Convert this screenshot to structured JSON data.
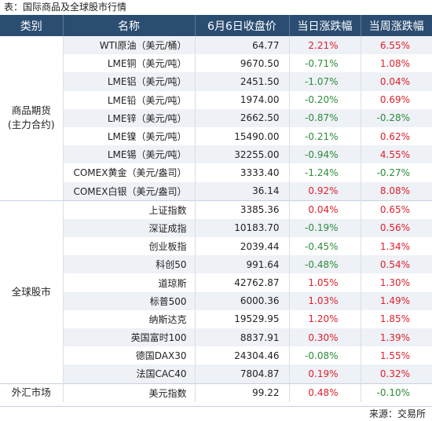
{
  "title": "表：国际商品及全球股市行情",
  "source": "来源：交易所",
  "headers": [
    "类别",
    "名称",
    "6月6日收盘价",
    "当日涨跌幅",
    "当周涨跌幅"
  ],
  "groups": [
    {
      "category": "商品期货\n(主力合约)",
      "rows": [
        {
          "name": "WTI原油（美元/桶）",
          "close": "64.77",
          "day": "2.21%",
          "week": "6.55%"
        },
        {
          "name": "LME铜（美元/吨）",
          "close": "9670.50",
          "day": "-0.71%",
          "week": "1.08%"
        },
        {
          "name": "LME铝（美元/吨）",
          "close": "2451.50",
          "day": "-1.07%",
          "week": "0.04%"
        },
        {
          "name": "LME铅（美元/吨）",
          "close": "1974.00",
          "day": "-0.20%",
          "week": "0.69%"
        },
        {
          "name": "LME锌（美元/吨）",
          "close": "2662.50",
          "day": "-0.87%",
          "week": "-0.28%"
        },
        {
          "name": "LME镍（美元/吨）",
          "close": "15490.00",
          "day": "-0.21%",
          "week": "0.62%"
        },
        {
          "name": "LME锡（美元/吨）",
          "close": "32255.00",
          "day": "-0.94%",
          "week": "4.55%"
        },
        {
          "name": "COMEX黄金（美元/盎司）",
          "close": "3333.40",
          "day": "-1.24%",
          "week": "-0.27%"
        },
        {
          "name": "COMEX白银（美元/盎司）",
          "close": "36.14",
          "day": "0.92%",
          "week": "8.08%"
        }
      ]
    },
    {
      "category": "全球股市",
      "rows": [
        {
          "name": "上证指数",
          "close": "3385.36",
          "day": "0.04%",
          "week": "0.65%"
        },
        {
          "name": "深证成指",
          "close": "10183.70",
          "day": "-0.19%",
          "week": "0.56%"
        },
        {
          "name": "创业板指",
          "close": "2039.44",
          "day": "-0.45%",
          "week": "1.34%"
        },
        {
          "name": "科创50",
          "close": "991.64",
          "day": "-0.48%",
          "week": "0.54%"
        },
        {
          "name": "道琼斯",
          "close": "42762.87",
          "day": "1.05%",
          "week": "1.30%"
        },
        {
          "name": "标普500",
          "close": "6000.36",
          "day": "1.03%",
          "week": "1.49%"
        },
        {
          "name": "纳斯达克",
          "close": "19529.95",
          "day": "1.20%",
          "week": "1.85%"
        },
        {
          "name": "英国富时100",
          "close": "8837.91",
          "day": "0.30%",
          "week": "1.39%"
        },
        {
          "name": "德国DAX30",
          "close": "24304.46",
          "day": "-0.08%",
          "week": "1.55%"
        },
        {
          "name": "法国CAC40",
          "close": "7804.87",
          "day": "0.19%",
          "week": "0.32%"
        }
      ]
    },
    {
      "category": "外汇市场",
      "rows": [
        {
          "name": "美元指数",
          "close": "99.22",
          "day": "0.48%",
          "week": "-0.10%"
        }
      ]
    }
  ]
}
